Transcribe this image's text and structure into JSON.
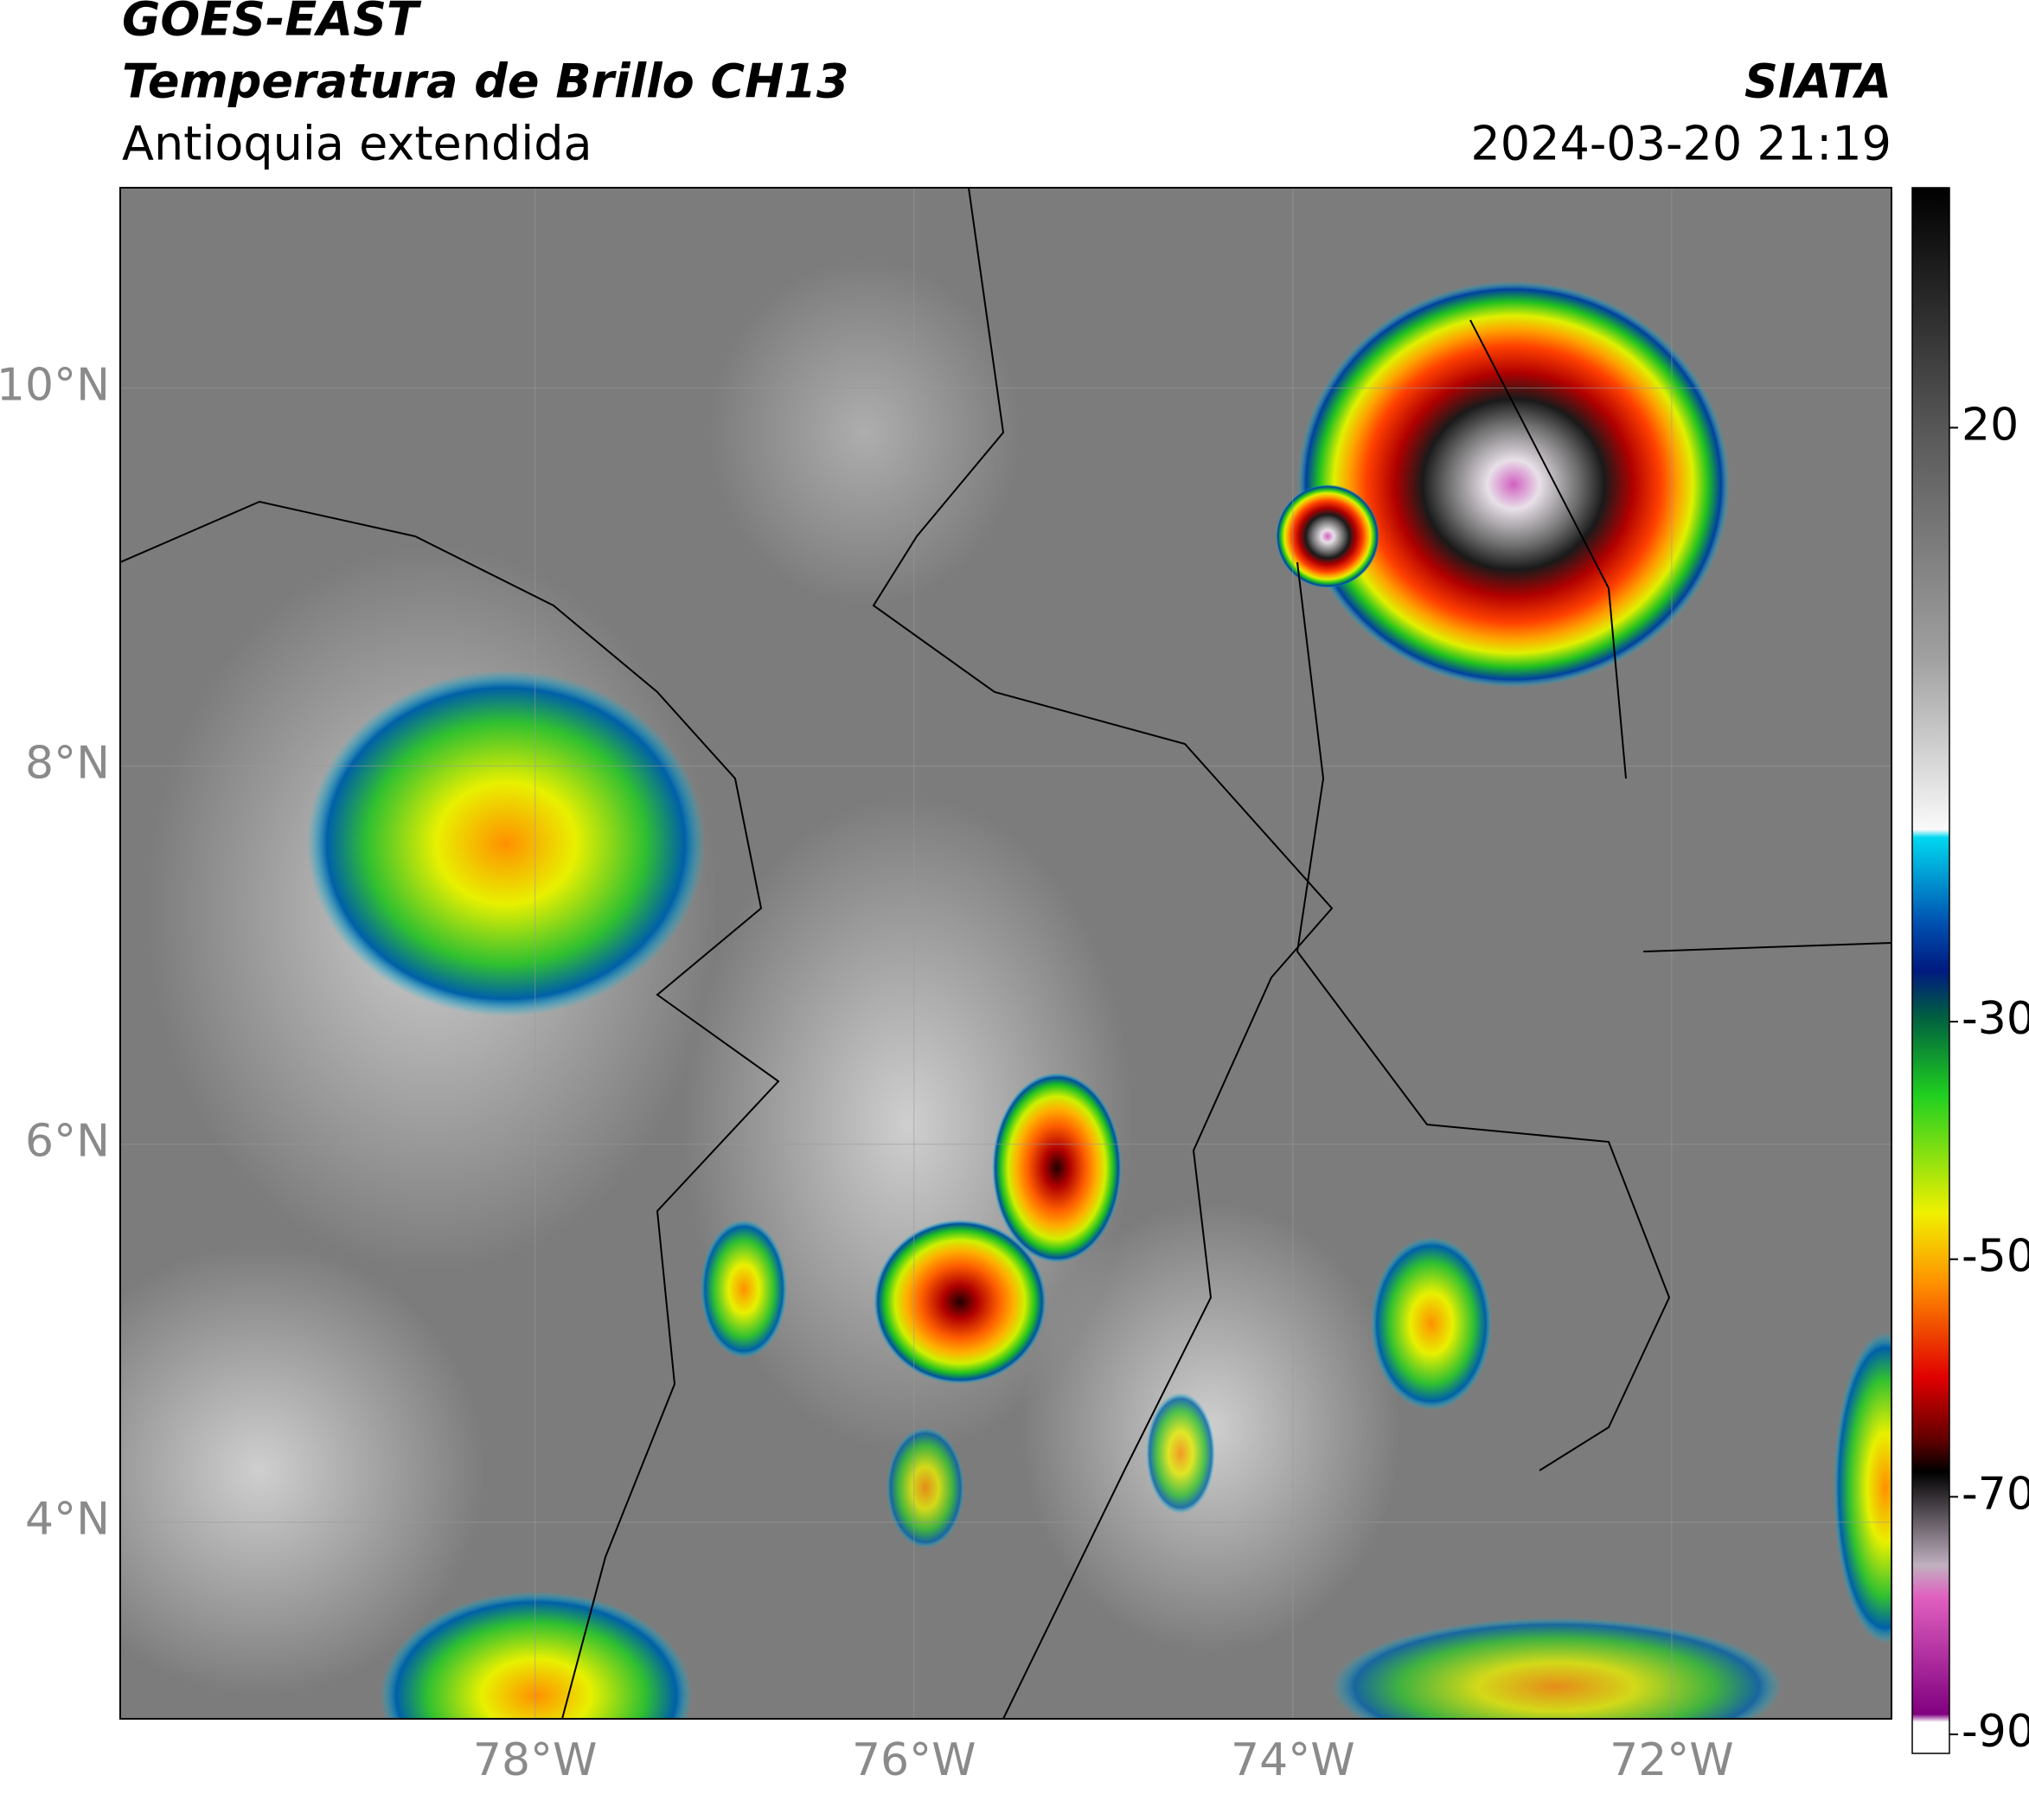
{
  "header": {
    "satellite": "GOES-EAST",
    "product": "Temperatura de Brillo CH13",
    "region": "Antioquia extendida",
    "source": "SIATA",
    "datetime": "2024-03-20 21:19"
  },
  "map": {
    "xlim": [
      -80.19,
      -70.84
    ],
    "ylim": [
      2.96,
      11.06
    ],
    "xticks": [
      {
        "value": -78,
        "label": "78°W"
      },
      {
        "value": -76,
        "label": "76°W"
      },
      {
        "value": -74,
        "label": "74°W"
      },
      {
        "value": -72,
        "label": "72°W"
      }
    ],
    "yticks": [
      {
        "value": 4,
        "label": "4°N"
      },
      {
        "value": 6,
        "label": "6°N"
      },
      {
        "value": 8,
        "label": "8°N"
      },
      {
        "value": 10,
        "label": "10°N"
      }
    ],
    "grid": true,
    "colorbar": {
      "lim": [
        -91.6,
        40.2
      ],
      "ticks": [
        -90,
        -70,
        -50,
        -30,
        20
      ]
    }
  }
}
